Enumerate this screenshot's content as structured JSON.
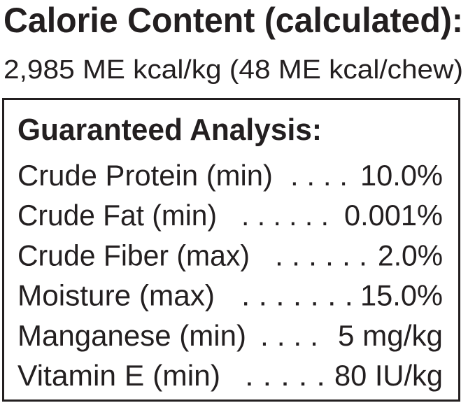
{
  "calorie": {
    "title": "Calorie Content (calculated):",
    "text": "2,985 ME kcal/kg (48 ME kcal/chew)"
  },
  "analysis": {
    "title": "Guaranteed Analysis:",
    "rows": [
      {
        "name": "Crude Protein (min)",
        "leader": ". . . .",
        "value": "10.0%"
      },
      {
        "name": "Crude Fat (min)",
        "leader": ". . . . . .",
        "value": "0.001%"
      },
      {
        "name": "Crude Fiber (max)",
        "leader": ". . . . . .",
        "value": "2.0%"
      },
      {
        "name": "Moisture (max)",
        "leader": ". . . . . . .",
        "value": "15.0%"
      },
      {
        "name": "Manganese (min)",
        "leader": ". . . .",
        "value": "5 mg/kg"
      },
      {
        "name": "Vitamin E (min)",
        "leader": ". . . . .",
        "value": "80 IU/kg"
      }
    ]
  }
}
